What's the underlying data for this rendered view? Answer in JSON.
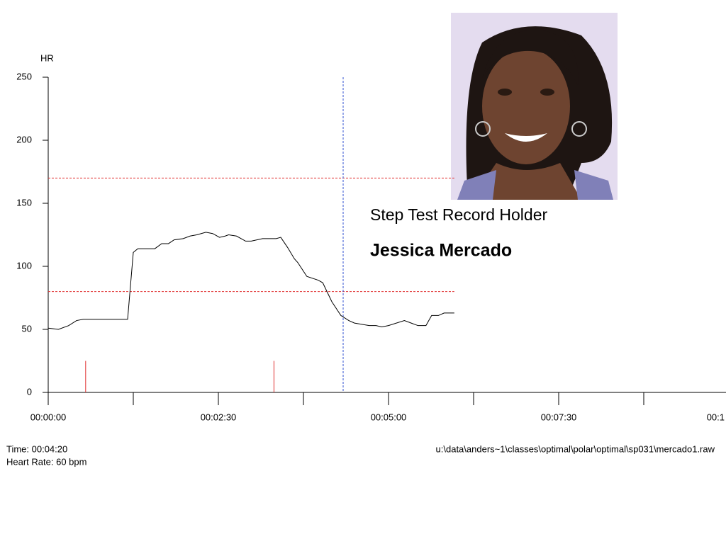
{
  "chart_data": {
    "type": "line",
    "y_label": "HR",
    "xlim": [
      0,
      600
    ],
    "ylim": [
      0,
      250
    ],
    "yticks": [
      0,
      50,
      100,
      150,
      200,
      250
    ],
    "xticks": [
      {
        "value": 0,
        "label": "00:00:00"
      },
      {
        "value": 150,
        "label": "00:02:30"
      },
      {
        "value": 300,
        "label": "00:05:00"
      },
      {
        "value": 450,
        "label": "00:07:30"
      },
      {
        "value": 600,
        "label": "00:1"
      }
    ],
    "xminor_ticks": [
      75,
      225,
      375,
      525
    ],
    "color": "#000000",
    "x": [
      0,
      9,
      18,
      25,
      31,
      34,
      70,
      75,
      79,
      94,
      100,
      106,
      111,
      119,
      125,
      131,
      139,
      145,
      151,
      156,
      159,
      166,
      174,
      179,
      189,
      201,
      205,
      211,
      217,
      220,
      228,
      238,
      242,
      250,
      258,
      265,
      270,
      283,
      289,
      294,
      300,
      314,
      320,
      326,
      333,
      338,
      344,
      349,
      358
    ],
    "values": [
      51,
      50,
      53,
      57,
      58,
      58,
      58,
      111,
      114,
      114,
      118,
      118,
      121,
      122,
      124,
      125,
      127,
      126,
      123,
      124,
      125,
      124,
      120,
      120,
      122,
      122,
      123,
      115,
      106,
      103,
      92,
      89,
      87,
      72,
      61,
      57,
      55,
      53,
      53,
      52,
      53,
      57,
      55,
      53,
      53,
      61,
      61,
      63,
      63
    ],
    "hlines": [
      170,
      80
    ],
    "hline_color": "#e03030",
    "hline_end": 358,
    "vline": 260,
    "vline_color": "#3050d0",
    "markers": [
      33,
      199
    ],
    "marker_level": 25,
    "marker_color": "#e03030",
    "status_time": "Time: 00:04:20",
    "status_hr": "Heart Rate: 60 bpm",
    "file_path": "u:\\data\\anders~1\\classes\\optimal\\polar\\optimal\\sp031\\mercado1.raw",
    "caption": "Step Test Record Holder",
    "person": "Jessica Mercado"
  }
}
